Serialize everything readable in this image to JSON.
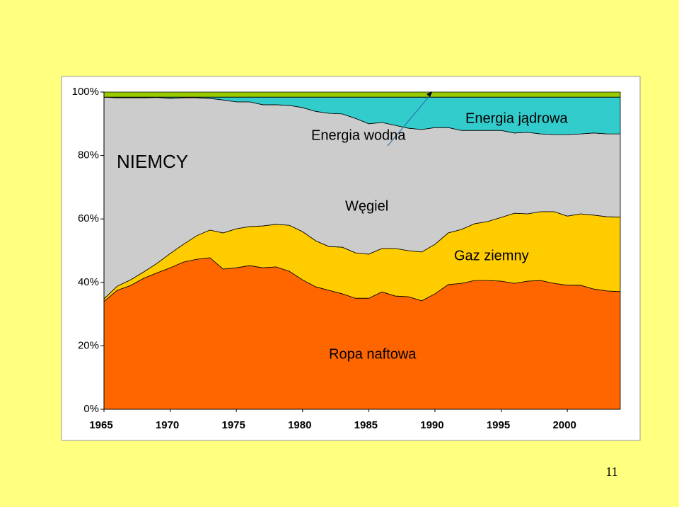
{
  "chart_data": {
    "type": "stacked_area",
    "annotations": [
      "NIEMCY",
      "Energia wodna",
      "Energia jądrowa",
      "Węgiel",
      "Gaz ziemny",
      "Ropa naftowa"
    ],
    "x": [
      1965,
      1966,
      1967,
      1968,
      1969,
      1970,
      1971,
      1972,
      1973,
      1974,
      1975,
      1976,
      1977,
      1978,
      1979,
      1980,
      1981,
      1982,
      1983,
      1984,
      1985,
      1986,
      1987,
      1988,
      1989,
      1990,
      1991,
      1992,
      1993,
      1994,
      1995,
      1996,
      1997,
      1998,
      1999,
      2000,
      2001,
      2002,
      2003,
      2004
    ],
    "series": [
      {
        "name": "Ropa naftowa",
        "color": "#ff6600",
        "values": [
          34,
          37.5,
          39,
          41.3,
          43,
          44.6,
          46.4,
          47.3,
          47.8,
          44.2,
          44.6,
          45.3,
          44.6,
          44.9,
          43.5,
          40.8,
          38.6,
          37.5,
          36.4,
          35,
          35,
          37,
          35.7,
          35.5,
          34.2,
          36.4,
          39.3,
          39.7,
          40.6,
          40.6,
          40.4,
          39.7,
          40.4,
          40.6,
          39.7,
          39.1,
          39.1,
          37.9,
          37.3,
          37.1
        ]
      },
      {
        "name": "Gaz ziemny",
        "color": "#ffcc00",
        "values": [
          0.8,
          1.3,
          1.8,
          2,
          3,
          4.5,
          5.6,
          7.4,
          8.7,
          11.4,
          12.3,
          12.3,
          13.2,
          13.4,
          14.5,
          15.2,
          14.5,
          13.8,
          14.7,
          14.3,
          13.9,
          13.7,
          15,
          14.5,
          15.4,
          15.6,
          16.3,
          17,
          17.9,
          18.6,
          20.1,
          22.1,
          21.2,
          21.7,
          22.6,
          21.8,
          22.5,
          23.3,
          23.4,
          23.5
        ]
      },
      {
        "name": "Węgiel",
        "color": "#cccccc",
        "values": [
          63.6,
          59.4,
          57.4,
          54.9,
          52.3,
          48.9,
          46.2,
          43.5,
          41.5,
          41.9,
          40,
          39.3,
          38.2,
          37.7,
          37.8,
          39.1,
          40.8,
          42,
          42,
          42.4,
          41.1,
          39.7,
          38.8,
          38.6,
          38.6,
          36.8,
          33.2,
          31.2,
          29.4,
          28.7,
          27.4,
          25.3,
          25.7,
          24.5,
          24.3,
          25.7,
          25.2,
          25.9,
          26.1,
          26.2
        ]
      },
      {
        "name": "Energia jądrowa",
        "color": "#33cccc",
        "values": [
          0,
          0.2,
          0.2,
          0.2,
          0.1,
          0.4,
          0.2,
          0.2,
          0.4,
          0.9,
          1.5,
          1.5,
          2.4,
          2.4,
          2.6,
          3.3,
          4.5,
          5.1,
          5.3,
          6.7,
          8.4,
          8,
          8.9,
          9.8,
          10.2,
          9.6,
          9.6,
          10.5,
          10.5,
          10.5,
          10.5,
          11.3,
          11.1,
          11.6,
          11.8,
          11.8,
          11.6,
          11.3,
          11.6,
          11.6
        ]
      },
      {
        "name": "Energia wodna",
        "color": "#99cc00",
        "values": [
          1.6,
          1.6,
          1.6,
          1.6,
          1.6,
          1.6,
          1.6,
          1.6,
          1.6,
          1.6,
          1.6,
          1.6,
          1.6,
          1.6,
          1.6,
          1.6,
          1.6,
          1.6,
          1.6,
          1.6,
          1.6,
          1.6,
          1.6,
          1.6,
          1.6,
          1.6,
          1.6,
          1.6,
          1.6,
          1.6,
          1.6,
          1.6,
          1.6,
          1.6,
          1.6,
          1.6,
          1.6,
          1.6,
          1.6,
          1.6
        ]
      }
    ],
    "xlim": [
      1965,
      2004
    ],
    "xticks": [
      1965,
      1970,
      1975,
      1980,
      1985,
      1990,
      1995,
      2000
    ],
    "ylim": [
      0,
      100
    ],
    "yticks": [
      {
        "value": 0,
        "label": "0%"
      },
      {
        "value": 20,
        "label": "20%"
      },
      {
        "value": 40,
        "label": "40%"
      },
      {
        "value": 60,
        "label": "60%"
      },
      {
        "value": 80,
        "label": "80%"
      },
      {
        "value": 100,
        "label": "100%"
      }
    ]
  },
  "page_number": "11"
}
